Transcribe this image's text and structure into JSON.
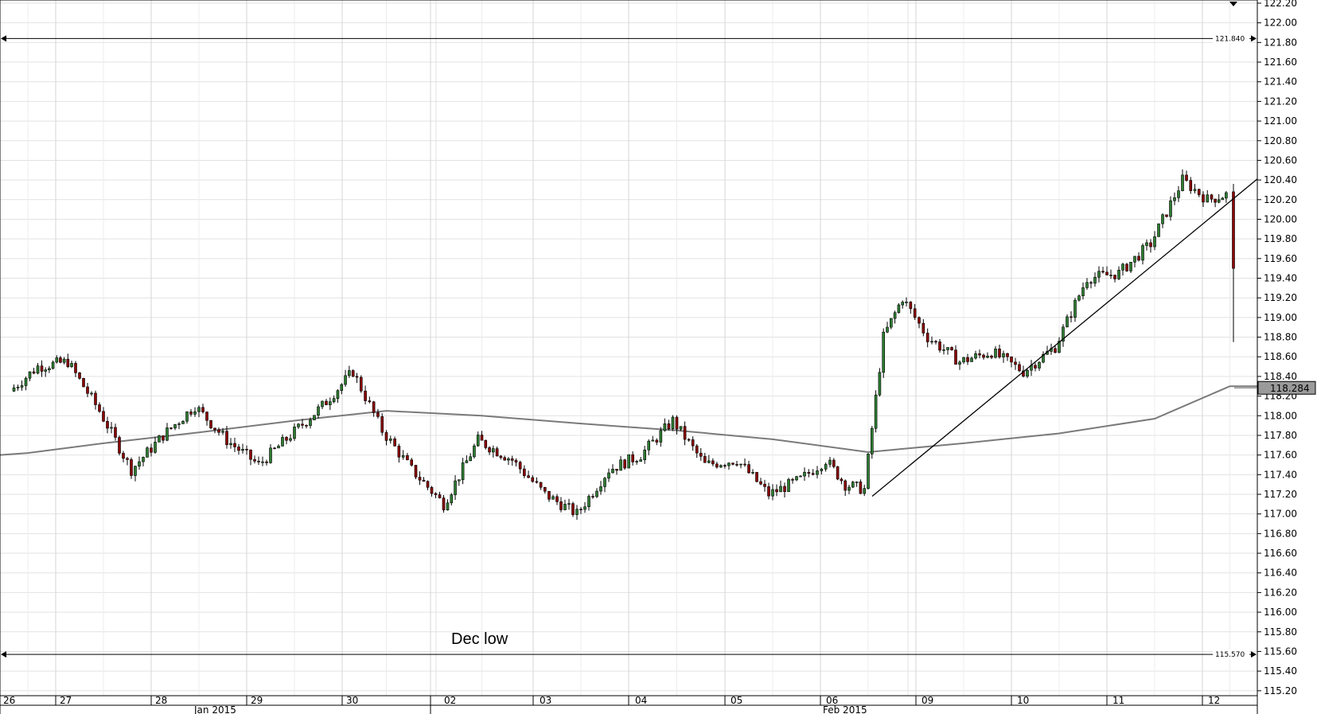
{
  "chart_data": {
    "type": "candlestick",
    "title": "",
    "xlabel": "",
    "ylabel": "",
    "ylim": [
      115.1,
      122.2
    ],
    "y_ticks": [
      122.2,
      122.0,
      121.8,
      121.6,
      121.4,
      121.2,
      121.0,
      120.8,
      120.6,
      120.4,
      120.2,
      120.0,
      119.8,
      119.6,
      119.4,
      119.2,
      119.0,
      118.8,
      118.6,
      118.4,
      118.2,
      118.0,
      117.8,
      117.6,
      117.4,
      117.2,
      117.0,
      116.8,
      116.6,
      116.4,
      116.2,
      116.0,
      115.8,
      115.6,
      115.4,
      115.2
    ],
    "day_labels": [
      "26",
      "27",
      "28",
      "29",
      "30",
      "02",
      "03",
      "04",
      "05",
      "06",
      "09",
      "10",
      "11",
      "12"
    ],
    "month_labels": [
      "Jan 2015",
      "Feb 2015"
    ],
    "grid": true,
    "current_price": "118.284",
    "levels": [
      {
        "value": 121.84,
        "label": "121.840"
      },
      {
        "value": 115.57,
        "label": "115.570"
      }
    ],
    "annotations": [
      {
        "text": "Dec low"
      }
    ],
    "trendline": {
      "from": {
        "day": "06",
        "price": 117.18
      },
      "to": {
        "day": "12",
        "price": 120.41
      }
    },
    "moving_average": [
      {
        "day": "26",
        "value": 117.62
      },
      {
        "day": "27",
        "value": 117.72
      },
      {
        "day": "28",
        "value": 117.83
      },
      {
        "day": "29",
        "value": 117.95
      },
      {
        "day": "30",
        "value": 118.05
      },
      {
        "day": "02",
        "value": 118.0
      },
      {
        "day": "03",
        "value": 117.92
      },
      {
        "day": "04",
        "value": 117.85
      },
      {
        "day": "05",
        "value": 117.76
      },
      {
        "day": "06",
        "value": 117.63
      },
      {
        "day": "09",
        "value": 117.72
      },
      {
        "day": "10",
        "value": 117.82
      },
      {
        "day": "11",
        "value": 117.97
      },
      {
        "day": "12",
        "value": 118.3
      }
    ],
    "price_path": [
      {
        "day": "26",
        "value": 118.25
      },
      {
        "day": "26",
        "value": 118.5
      },
      {
        "day": "27",
        "value": 118.55
      },
      {
        "day": "27",
        "value": 118.05
      },
      {
        "day": "27",
        "value": 117.45
      },
      {
        "day": "28",
        "value": 117.8
      },
      {
        "day": "28",
        "value": 118.1
      },
      {
        "day": "28",
        "value": 117.75
      },
      {
        "day": "29",
        "value": 117.5
      },
      {
        "day": "29",
        "value": 117.8
      },
      {
        "day": "29",
        "value": 118.1
      },
      {
        "day": "30",
        "value": 118.45
      },
      {
        "day": "30",
        "value": 117.85
      },
      {
        "day": "30",
        "value": 117.45
      },
      {
        "day": "02",
        "value": 117.1
      },
      {
        "day": "02",
        "value": 117.75
      },
      {
        "day": "02",
        "value": 117.55
      },
      {
        "day": "03",
        "value": 117.2
      },
      {
        "day": "03",
        "value": 117.0
      },
      {
        "day": "03",
        "value": 117.45
      },
      {
        "day": "04",
        "value": 117.6
      },
      {
        "day": "04",
        "value": 117.95
      },
      {
        "day": "04",
        "value": 117.5
      },
      {
        "day": "05",
        "value": 117.55
      },
      {
        "day": "05",
        "value": 117.2
      },
      {
        "day": "05",
        "value": 117.35
      },
      {
        "day": "06",
        "value": 117.55
      },
      {
        "day": "06",
        "value": 117.3
      },
      {
        "day": "06",
        "value": 117.25
      },
      {
        "day": "06",
        "value": 118.8
      },
      {
        "day": "06",
        "value": 119.2
      },
      {
        "day": "09",
        "value": 118.8
      },
      {
        "day": "09",
        "value": 118.55
      },
      {
        "day": "09",
        "value": 118.65
      },
      {
        "day": "10",
        "value": 118.45
      },
      {
        "day": "10",
        "value": 118.7
      },
      {
        "day": "10",
        "value": 119.4
      },
      {
        "day": "11",
        "value": 119.45
      },
      {
        "day": "11",
        "value": 119.75
      },
      {
        "day": "11",
        "value": 120.4
      },
      {
        "day": "12",
        "value": 120.2
      },
      {
        "day": "12",
        "value": 120.25
      },
      {
        "day": "12",
        "value": 119.5
      }
    ]
  }
}
